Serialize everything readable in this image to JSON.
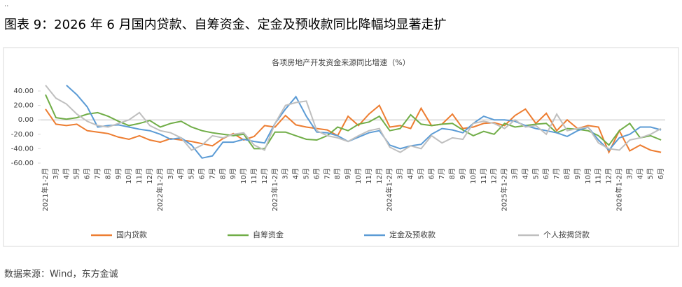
{
  "mark": "..",
  "heading": "图表 9：2026 年 6 月国内贷款、自筹资金、定金及预收款同比降幅均显著走扩",
  "source": "数据来源：Wind，东方金诚",
  "chart_data": {
    "type": "line",
    "title": "各项房地产开发资金来源同比增速（%）",
    "legend": "bottom",
    "grid": false,
    "categories": [
      "2021年1-2月",
      "3月",
      "4月",
      "5月",
      "6月",
      "7月",
      "8月",
      "9月",
      "10月",
      "11月",
      "12月",
      "2022年1-2月",
      "3月",
      "4月",
      "5月",
      "6月",
      "7月",
      "8月",
      "9月",
      "10月",
      "11月",
      "12月",
      "2023年1-2月",
      "3月",
      "4月",
      "5月",
      "6月",
      "7月",
      "8月",
      "9月",
      "10月",
      "11月",
      "12月",
      "2024年1-2月",
      "3月",
      "4月",
      "5月",
      "6月",
      "7月",
      "8月",
      "9月",
      "10月",
      "11月",
      "12月",
      "2025年1-2月",
      "3月",
      "4月",
      "5月",
      "6月",
      "7月",
      "8月",
      "9月",
      "10月",
      "11月",
      "12月",
      "2026年1-2月",
      "3月",
      "4月",
      "5月",
      "6月"
    ],
    "ylim": [
      -60,
      40
    ],
    "yticks": [
      {
        "value": 40,
        "label": "40.00"
      },
      {
        "value": 20,
        "label": "20.00"
      },
      {
        "value": 0,
        "label": "0.00"
      },
      {
        "value": -20,
        "label": "-20.00"
      },
      {
        "value": -40,
        "label": "-40.00"
      },
      {
        "value": -60,
        "label": "-60.00"
      }
    ],
    "series": [
      {
        "name": "国内贷款",
        "color": "#ed7d31",
        "values": [
          15,
          -6,
          -8,
          -6,
          -15,
          -17,
          -19,
          -24,
          -27,
          -22,
          -28,
          -31,
          -26,
          -28,
          -30,
          -33,
          -36,
          -26,
          -19,
          -28,
          -23,
          -8,
          -10,
          6,
          -7,
          -10,
          -12,
          -14,
          -22,
          5,
          -8,
          8,
          20,
          -10,
          -8,
          -12,
          16,
          -8,
          -6,
          8,
          -12,
          -10,
          -5,
          -4,
          -8,
          6,
          15,
          -5,
          9,
          -15,
          0,
          -12,
          -8,
          -10,
          -45,
          -15,
          -43,
          -35,
          -42,
          -45
        ]
      },
      {
        "name": "自筹资金",
        "color": "#70ad47",
        "values": [
          35,
          3,
          1,
          3,
          8,
          10,
          5,
          -2,
          -8,
          -5,
          -1,
          -10,
          -5,
          -2,
          -10,
          -15,
          -18,
          -20,
          -22,
          -20,
          -40,
          -40,
          -17,
          -17,
          -22,
          -27,
          -28,
          -22,
          -10,
          -15,
          -6,
          -3,
          5,
          -15,
          -12,
          7,
          -6,
          -8,
          -6,
          -5,
          -14,
          -22,
          -16,
          -20,
          -5,
          -10,
          -8,
          -6,
          -5,
          -18,
          -12,
          -13,
          -15,
          -22,
          -35,
          -15,
          -5,
          -25,
          -22,
          -28
        ]
      },
      {
        "name": "定金及预收款",
        "color": "#5b9bd5",
        "values": [
          null,
          null,
          48,
          35,
          18,
          -10,
          -8,
          -7,
          -10,
          -13,
          -15,
          -20,
          -27,
          -25,
          -35,
          -53,
          -50,
          -31,
          -31,
          -27,
          -30,
          -32,
          -5,
          15,
          32,
          5,
          -17,
          -18,
          -22,
          -30,
          -24,
          -18,
          -15,
          -35,
          -40,
          -36,
          -34,
          -20,
          -12,
          -14,
          -18,
          -5,
          5,
          0,
          0,
          -2,
          -8,
          -12,
          -15,
          -18,
          -23,
          -15,
          -10,
          -28,
          -42,
          -25,
          -20,
          -10,
          -10,
          -14
        ]
      },
      {
        "name": "个人按揭贷款",
        "color": "#bfbfbf",
        "values": [
          48,
          30,
          22,
          8,
          -2,
          -8,
          -10,
          -5,
          0,
          10,
          -8,
          -15,
          -18,
          -25,
          -42,
          -35,
          -22,
          -25,
          -20,
          -18,
          -35,
          -42,
          -5,
          20,
          24,
          26,
          -15,
          -22,
          -25,
          -30,
          -22,
          -15,
          -12,
          -38,
          -45,
          -36,
          -40,
          -22,
          -32,
          -25,
          -27,
          -5,
          -2,
          -5,
          -12,
          0,
          -10,
          -8,
          -20,
          8,
          -15,
          -12,
          -10,
          -32,
          -40,
          -42,
          -28,
          -25,
          -20,
          -12
        ]
      }
    ]
  }
}
